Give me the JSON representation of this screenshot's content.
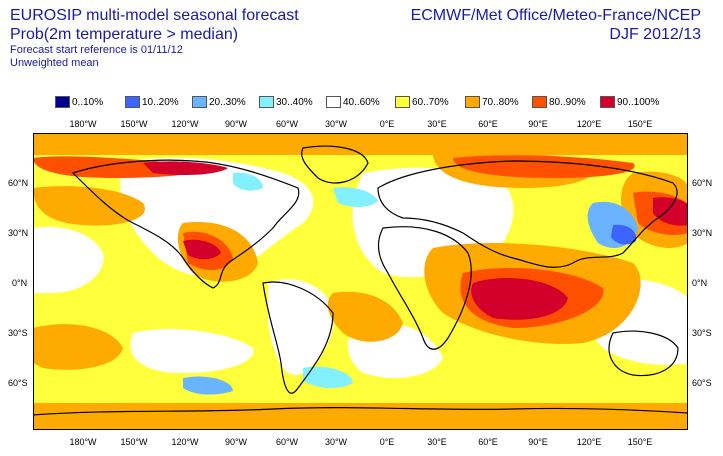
{
  "header": {
    "title": "EUROSIP multi-model seasonal forecast",
    "subtitle": "Prob(2m temperature > median)",
    "start_ref": "Forecast start reference is 01/11/12",
    "mean_type": "Unweighted mean",
    "agencies": "ECMWF/Met Office/Meteo-France/NCEP",
    "season": "DJF 2012/13"
  },
  "legend": [
    {
      "label": "0..10%",
      "color": "#00008c"
    },
    {
      "label": "10..20%",
      "color": "#3c64ff"
    },
    {
      "label": "20..30%",
      "color": "#6ab4ff"
    },
    {
      "label": "30..40%",
      "color": "#82f0ff"
    },
    {
      "label": "40..60%",
      "color": "#ffffff"
    },
    {
      "label": "60..70%",
      "color": "#ffff3c"
    },
    {
      "label": "70..80%",
      "color": "#ffaa00"
    },
    {
      "label": "80..90%",
      "color": "#ff5000"
    },
    {
      "label": "90..100%",
      "color": "#d2002a"
    }
  ],
  "lon_labels": [
    "180°W",
    "150°W",
    "120°W",
    "90°W",
    "60°W",
    "30°W",
    "0°E",
    "30°E",
    "60°E",
    "90°E",
    "120°E",
    "150°E"
  ],
  "lat_labels": [
    "60°N",
    "30°N",
    "0°N",
    "30°S",
    "60°S"
  ],
  "colors": {
    "title": "#1a1aa6",
    "coast": "#000000",
    "map_bg": "#ffffff"
  }
}
